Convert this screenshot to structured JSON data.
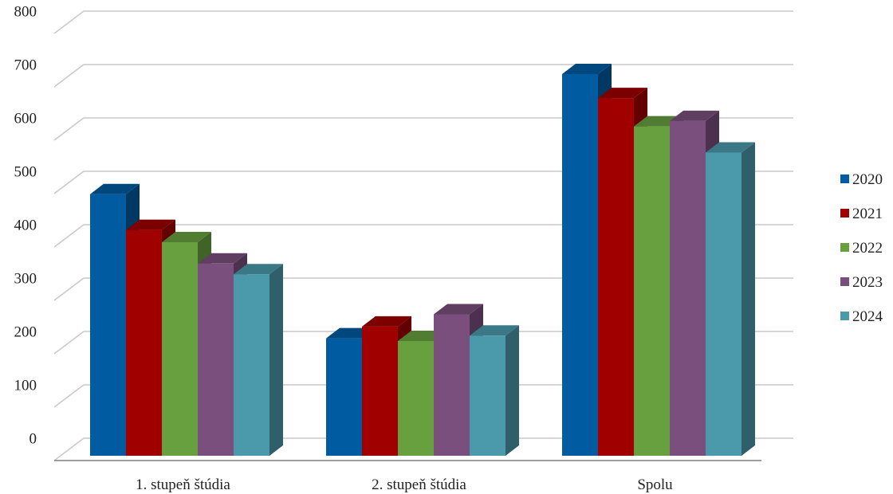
{
  "chart_data": {
    "type": "bar",
    "categories": [
      "1. stupeň štúdia",
      "2. stupeň štúdia",
      "Spolu"
    ],
    "series": [
      {
        "name": "2020",
        "values": [
          490,
          220,
          715
        ],
        "color": "#005BA1"
      },
      {
        "name": "2021",
        "values": [
          423,
          242,
          670
        ],
        "color": "#A00000"
      },
      {
        "name": "2022",
        "values": [
          400,
          215,
          617
        ],
        "color": "#68A040"
      },
      {
        "name": "2023",
        "values": [
          360,
          265,
          627
        ],
        "color": "#7A4F7E"
      },
      {
        "name": "2024",
        "values": [
          340,
          225,
          568
        ],
        "color": "#4A9AAB"
      }
    ],
    "yticks": [
      "0",
      "100",
      "200",
      "300",
      "400",
      "500",
      "600",
      "700",
      "800"
    ],
    "ylim": [
      0,
      800
    ],
    "grid": true,
    "legend": "right",
    "style": "3d-clustered-column"
  }
}
